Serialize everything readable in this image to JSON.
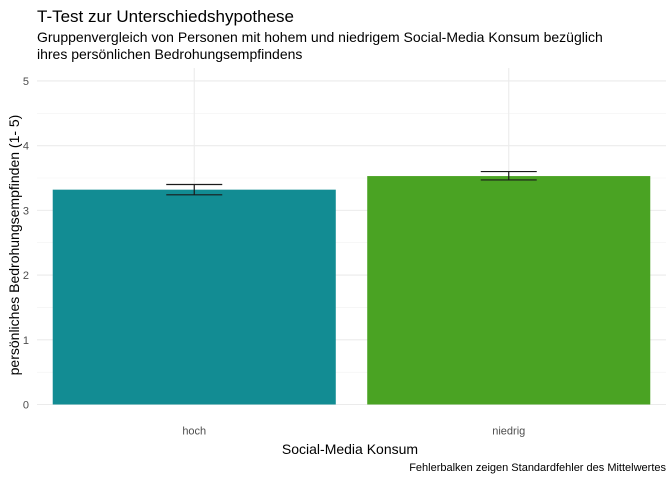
{
  "chart_data": {
    "type": "bar",
    "title": "T-Test zur Unterschiedshypothese",
    "subtitle_lines": [
      "Gruppenvergleich von Personen mit hohem und niedrigem Social-Media Konsum bezüglich",
      "ihres persönlichen Bedrohungsempfindens"
    ],
    "xlabel": "Social-Media Konsum",
    "ylabel": "persönliches Bedrohungsempfinden (1- 5)",
    "caption": "Fehlerbalken zeigen Standardfehler des Mittelwertes",
    "categories": [
      "hoch",
      "niedrig"
    ],
    "values": [
      3.32,
      3.53
    ],
    "error_low": [
      3.24,
      3.47
    ],
    "error_high": [
      3.4,
      3.6
    ],
    "bar_colors": [
      "#128C93",
      "#4AA323"
    ],
    "ylim": [
      0,
      5.2
    ],
    "y_ticks": [
      0,
      1,
      2,
      3,
      4,
      5
    ],
    "y_tick_labels": [
      "0",
      "1",
      "2",
      "3",
      "4",
      "5"
    ],
    "grid": true,
    "legend": "none"
  }
}
